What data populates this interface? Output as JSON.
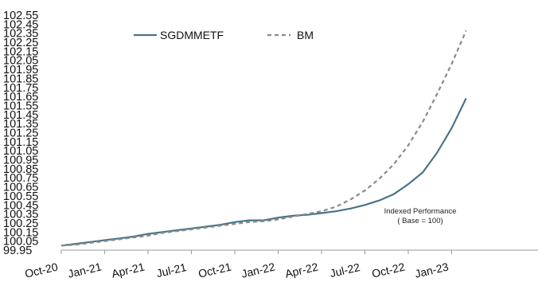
{
  "chart_data": {
    "type": "line",
    "title": "",
    "xlabel": "",
    "ylabel": "",
    "ylim": [
      99.95,
      102.55
    ],
    "y_ticks": [
      "102.55",
      "102.45",
      "102.35",
      "102.25",
      "102.15",
      "102.05",
      "101.95",
      "101.85",
      "101.75",
      "101.65",
      "101.55",
      "101.45",
      "101.35",
      "101.25",
      "101.15",
      "101.05",
      "100.95",
      "100.85",
      "100.75",
      "100.65",
      "100.55",
      "100.45",
      "100.35",
      "100.25",
      "100.15",
      "100.05",
      "99.95"
    ],
    "x_ticks": [
      "Oct-20",
      "Jan-21",
      "Apr-21",
      "Jul-21",
      "Oct-21",
      "Jan-22",
      "Apr-22",
      "Jul-22",
      "Oct-22",
      "Jan-23"
    ],
    "grid": false,
    "legend_position": "top",
    "annotation": [
      "Indexed Performance",
      "( Base = 100)"
    ],
    "series": [
      {
        "name": "SGDMMETF",
        "color": "#4a7389",
        "style": "solid",
        "x": [
          "Oct-20",
          "Nov-20",
          "Dec-20",
          "Jan-21",
          "Feb-21",
          "Mar-21",
          "Apr-21",
          "May-21",
          "Jun-21",
          "Jul-21",
          "Aug-21",
          "Sep-21",
          "Oct-21",
          "Nov-21",
          "Dec-21",
          "Jan-22",
          "Feb-22",
          "Mar-22",
          "Apr-22",
          "May-22",
          "Jun-22",
          "Jul-22",
          "Aug-22",
          "Sep-22",
          "Oct-22",
          "Nov-22",
          "Dec-22",
          "Jan-23",
          "Feb-23"
        ],
        "values": [
          100.0,
          100.02,
          100.04,
          100.06,
          100.08,
          100.1,
          100.13,
          100.15,
          100.17,
          100.19,
          100.21,
          100.23,
          100.26,
          100.28,
          100.28,
          100.31,
          100.33,
          100.34,
          100.36,
          100.38,
          100.41,
          100.45,
          100.5,
          100.57,
          100.68,
          100.81,
          101.03,
          101.3,
          101.63
        ]
      },
      {
        "name": "BM",
        "color": "#8a8a8a",
        "style": "dashed",
        "x": [
          "Oct-20",
          "Nov-20",
          "Dec-20",
          "Jan-21",
          "Feb-21",
          "Mar-21",
          "Apr-21",
          "May-21",
          "Jun-21",
          "Jul-21",
          "Aug-21",
          "Sep-21",
          "Oct-21",
          "Nov-21",
          "Dec-21",
          "Jan-22",
          "Feb-22",
          "Mar-22",
          "Apr-22",
          "May-22",
          "Jun-22",
          "Jul-22",
          "Aug-22",
          "Sep-22",
          "Oct-22",
          "Nov-22",
          "Dec-22",
          "Jan-23",
          "Feb-23"
        ],
        "values": [
          100.0,
          100.01,
          100.03,
          100.05,
          100.07,
          100.09,
          100.11,
          100.14,
          100.16,
          100.18,
          100.2,
          100.22,
          100.24,
          100.26,
          100.27,
          100.29,
          100.32,
          100.35,
          100.38,
          100.43,
          100.51,
          100.61,
          100.74,
          100.9,
          101.11,
          101.37,
          101.68,
          102.01,
          102.38
        ]
      }
    ]
  }
}
